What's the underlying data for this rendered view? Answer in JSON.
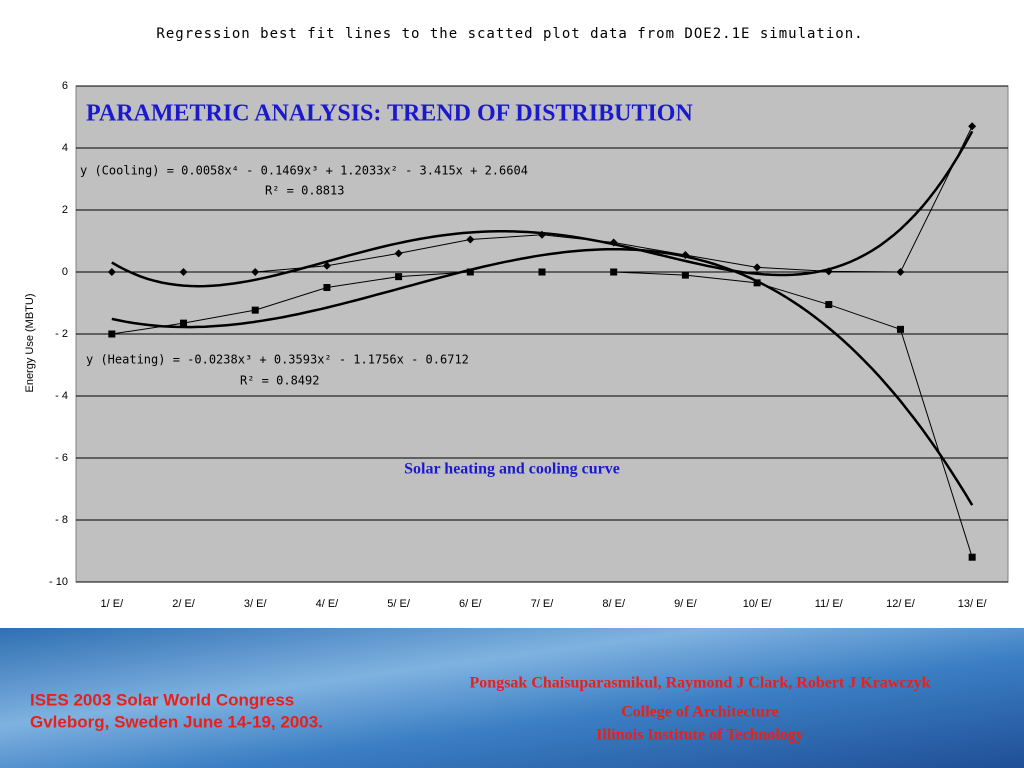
{
  "chart_data": {
    "type": "line",
    "title": "Regression best fit lines to the scatted plot data from DOE2.1E simulation.",
    "heading": "PARAMETRIC ANALYSIS: TREND OF DISTRIBUTION",
    "y_label": "Energy Use (MBTU)",
    "annotation": "Solar heating and cooling curve",
    "categories": [
      "1/ E/",
      "2/ E/",
      "3/ E/",
      "4/ E/",
      "5/ E/",
      "6/ E/",
      "7/ E/",
      "8/ E/",
      "9/ E/",
      "10/ E/",
      "11/ E/",
      "12/ E/",
      "13/ E/"
    ],
    "series": [
      {
        "marker": "diamond",
        "color": "#000000",
        "values": [
          0,
          0,
          0,
          0.2,
          0.6,
          1.05,
          1.2,
          0.95,
          0.55,
          0.15,
          0.02,
          0,
          4.7
        ],
        "trendline": {
          "equation": "y (Cooling) = 0.0058x⁴ - 0.1469x³ + 1.2033x² - 3.415x + 2.6604",
          "r2": "R² = 0.8813",
          "coefficients": [
            0.0058,
            -0.1469,
            1.2033,
            -3.415,
            2.6604
          ]
        }
      },
      {
        "marker": "square",
        "color": "#000000",
        "values": [
          -2,
          -1.65,
          -1.23,
          -0.5,
          -0.15,
          0,
          0,
          0,
          -0.1,
          -0.35,
          -1.05,
          -1.85,
          -9.2
        ],
        "trendline": {
          "equation": "y (Heating) = -0.0238x³ + 0.3593x² - 1.1756x - 0.6712",
          "r2": "R² = 0.8492",
          "coefficients": [
            -0.0238,
            0.3593,
            -1.1756,
            -0.6712
          ]
        }
      }
    ],
    "ylim": [
      -10,
      6
    ],
    "yticks": [
      {
        "value": -10,
        "label": "- 10"
      },
      {
        "value": -8,
        "label": "- 8"
      },
      {
        "value": -6,
        "label": "- 6"
      },
      {
        "value": -4,
        "label": "- 4"
      },
      {
        "value": -2,
        "label": "- 2"
      },
      0,
      2,
      4,
      6
    ],
    "grid": true
  },
  "footer": {
    "congress": "ISES 2003 Solar World Congress",
    "place": "Gvleborg, Sweden June 14-19, 2003.",
    "authors": "Pongsak Chaisuparasmikul, Raymond J Clark, Robert J Krawczyk",
    "college": "College of Architecture",
    "institute": "Illinois Institute of Technology"
  }
}
